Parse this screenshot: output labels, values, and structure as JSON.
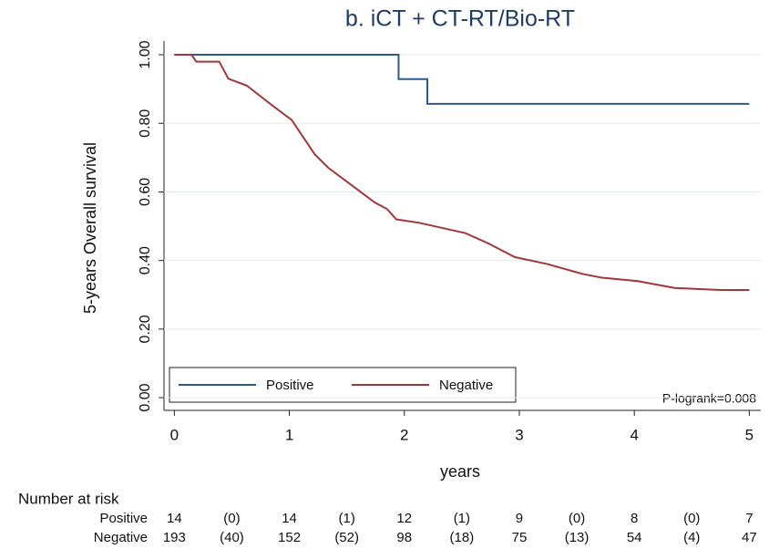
{
  "chart_data": {
    "type": "step",
    "title": "b. iCT  + CT-RT/Bio-RT",
    "xlabel": "years",
    "ylabel": "5-years Overall survival",
    "annotation": "P-logrank=0.008",
    "xlim": [
      -0.09,
      5.1
    ],
    "xticks": [
      0,
      1,
      2,
      3,
      4,
      5
    ],
    "ylim": [
      -0.037,
      1.04
    ],
    "yticks": [
      {
        "value": 0,
        "label": "0.00"
      },
      {
        "value": 0.2,
        "label": "0.20"
      },
      {
        "value": 0.4,
        "label": "0.40"
      },
      {
        "value": 0.6,
        "label": "0.60"
      },
      {
        "value": 0.8,
        "label": "0.80"
      },
      {
        "value": 1,
        "label": "1.00"
      }
    ],
    "grid": true,
    "series": [
      {
        "name": "Positive",
        "color": "#2d5a8a",
        "x": [
          0,
          1.95,
          1.95,
          2.2,
          2.2,
          5
        ],
        "values": [
          1,
          1,
          0.929,
          0.929,
          0.857,
          0.857
        ]
      },
      {
        "name": "Negative",
        "color": "#a0373a",
        "x": [
          0,
          0.15,
          0.19,
          0.39,
          0.47,
          0.63,
          0.86,
          1.02,
          1.22,
          1.34,
          1.58,
          1.74,
          1.85,
          1.93,
          2.13,
          2.53,
          2.73,
          2.96,
          3.24,
          3.56,
          3.72,
          4.03,
          4.35,
          4.75,
          5
        ],
        "values": [
          1,
          1,
          0.98,
          0.98,
          0.93,
          0.91,
          0.85,
          0.81,
          0.71,
          0.67,
          0.61,
          0.57,
          0.55,
          0.52,
          0.51,
          0.48,
          0.45,
          0.41,
          0.39,
          0.36,
          0.35,
          0.34,
          0.32,
          0.314,
          0.314
        ]
      }
    ],
    "risk_table": {
      "title": "Number at risk",
      "rows": [
        {
          "label": "Positive",
          "values": [
            "14",
            "(0)",
            "14",
            "(1)",
            "12",
            "(1)",
            "9",
            "(0)",
            "8",
            "(0)",
            "7"
          ]
        },
        {
          "label": "Negative",
          "values": [
            "193",
            "(40)",
            "152",
            "(52)",
            "98",
            "(18)",
            "75",
            "(13)",
            "54",
            "(4)",
            "47"
          ]
        }
      ]
    }
  }
}
